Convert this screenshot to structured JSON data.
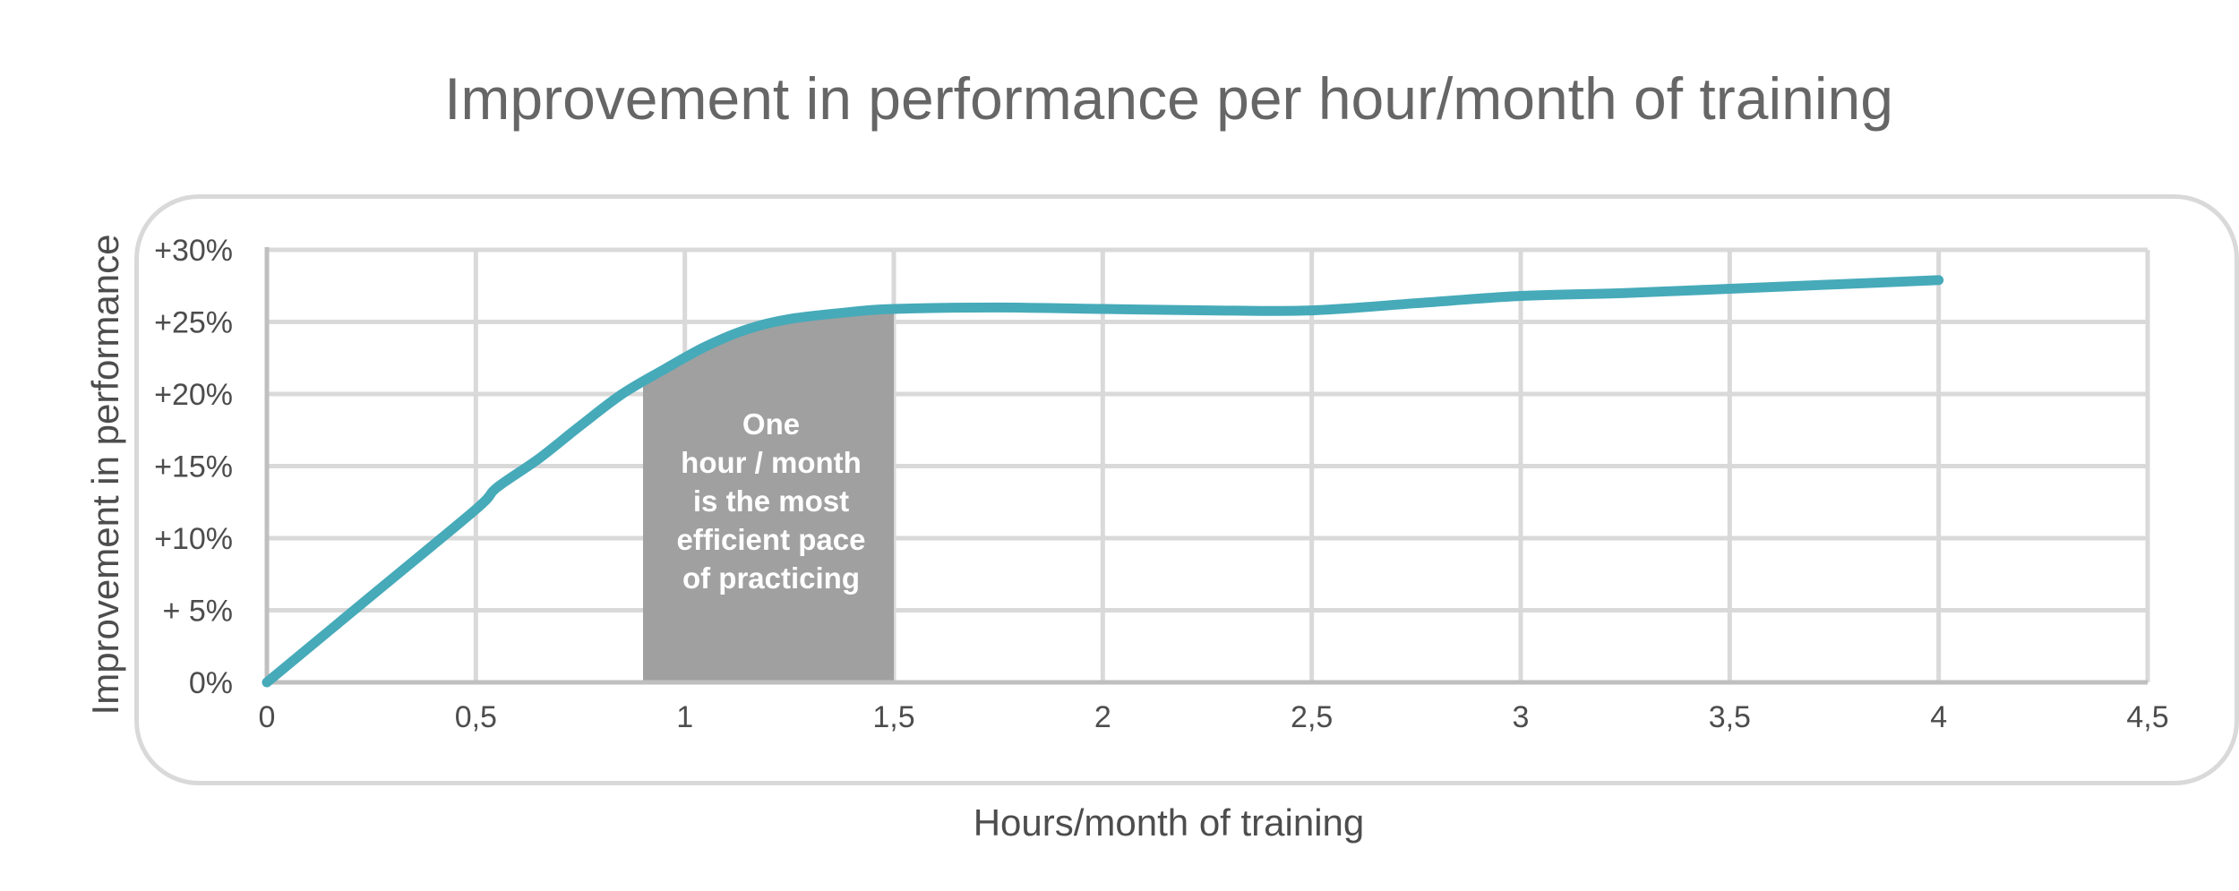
{
  "chart_data": {
    "type": "line",
    "title": "Improvement in performance per hour/month of training",
    "xlabel": "Hours/month of training",
    "ylabel": "Improvement in performance",
    "xlim": [
      0,
      4.5
    ],
    "ylim": [
      0,
      30
    ],
    "x_ticks": [
      0,
      0.5,
      1,
      1.5,
      2,
      2.5,
      3,
      3.5,
      4,
      4.5
    ],
    "x_tick_labels": [
      "0",
      "0,5",
      "1",
      "1,5",
      "2",
      "2,5",
      "3",
      "3,5",
      "4",
      "4,5"
    ],
    "y_ticks": [
      0,
      5,
      10,
      15,
      20,
      25,
      30
    ],
    "y_tick_labels": [
      "0%",
      "+ 5%",
      "+10%",
      "+15%",
      "+20%",
      "+25%",
      "+30%"
    ],
    "grid": true,
    "series": [
      {
        "color": "#46aab9",
        "x": [
          0,
          0.25,
          0.5,
          0.55,
          0.65,
          0.75,
          0.85,
          0.95,
          1.05,
          1.15,
          1.25,
          1.4,
          1.5,
          1.75,
          2.0,
          2.25,
          2.5,
          2.75,
          3.0,
          3.25,
          3.5,
          3.75,
          4.0
        ],
        "y": [
          0,
          6,
          12,
          13.5,
          15.5,
          17.8,
          20,
          21.7,
          23.3,
          24.5,
          25.2,
          25.7,
          25.9,
          26,
          25.9,
          25.8,
          25.8,
          26.3,
          26.8,
          27,
          27.3,
          27.6,
          27.9
        ]
      }
    ],
    "highlight": {
      "x_range": [
        0.9,
        1.5
      ],
      "color": "#a0a0a0",
      "annotation_lines": [
        "One",
        "hour  / month",
        "is the most",
        "efficient pace",
        "of practicing"
      ]
    }
  }
}
